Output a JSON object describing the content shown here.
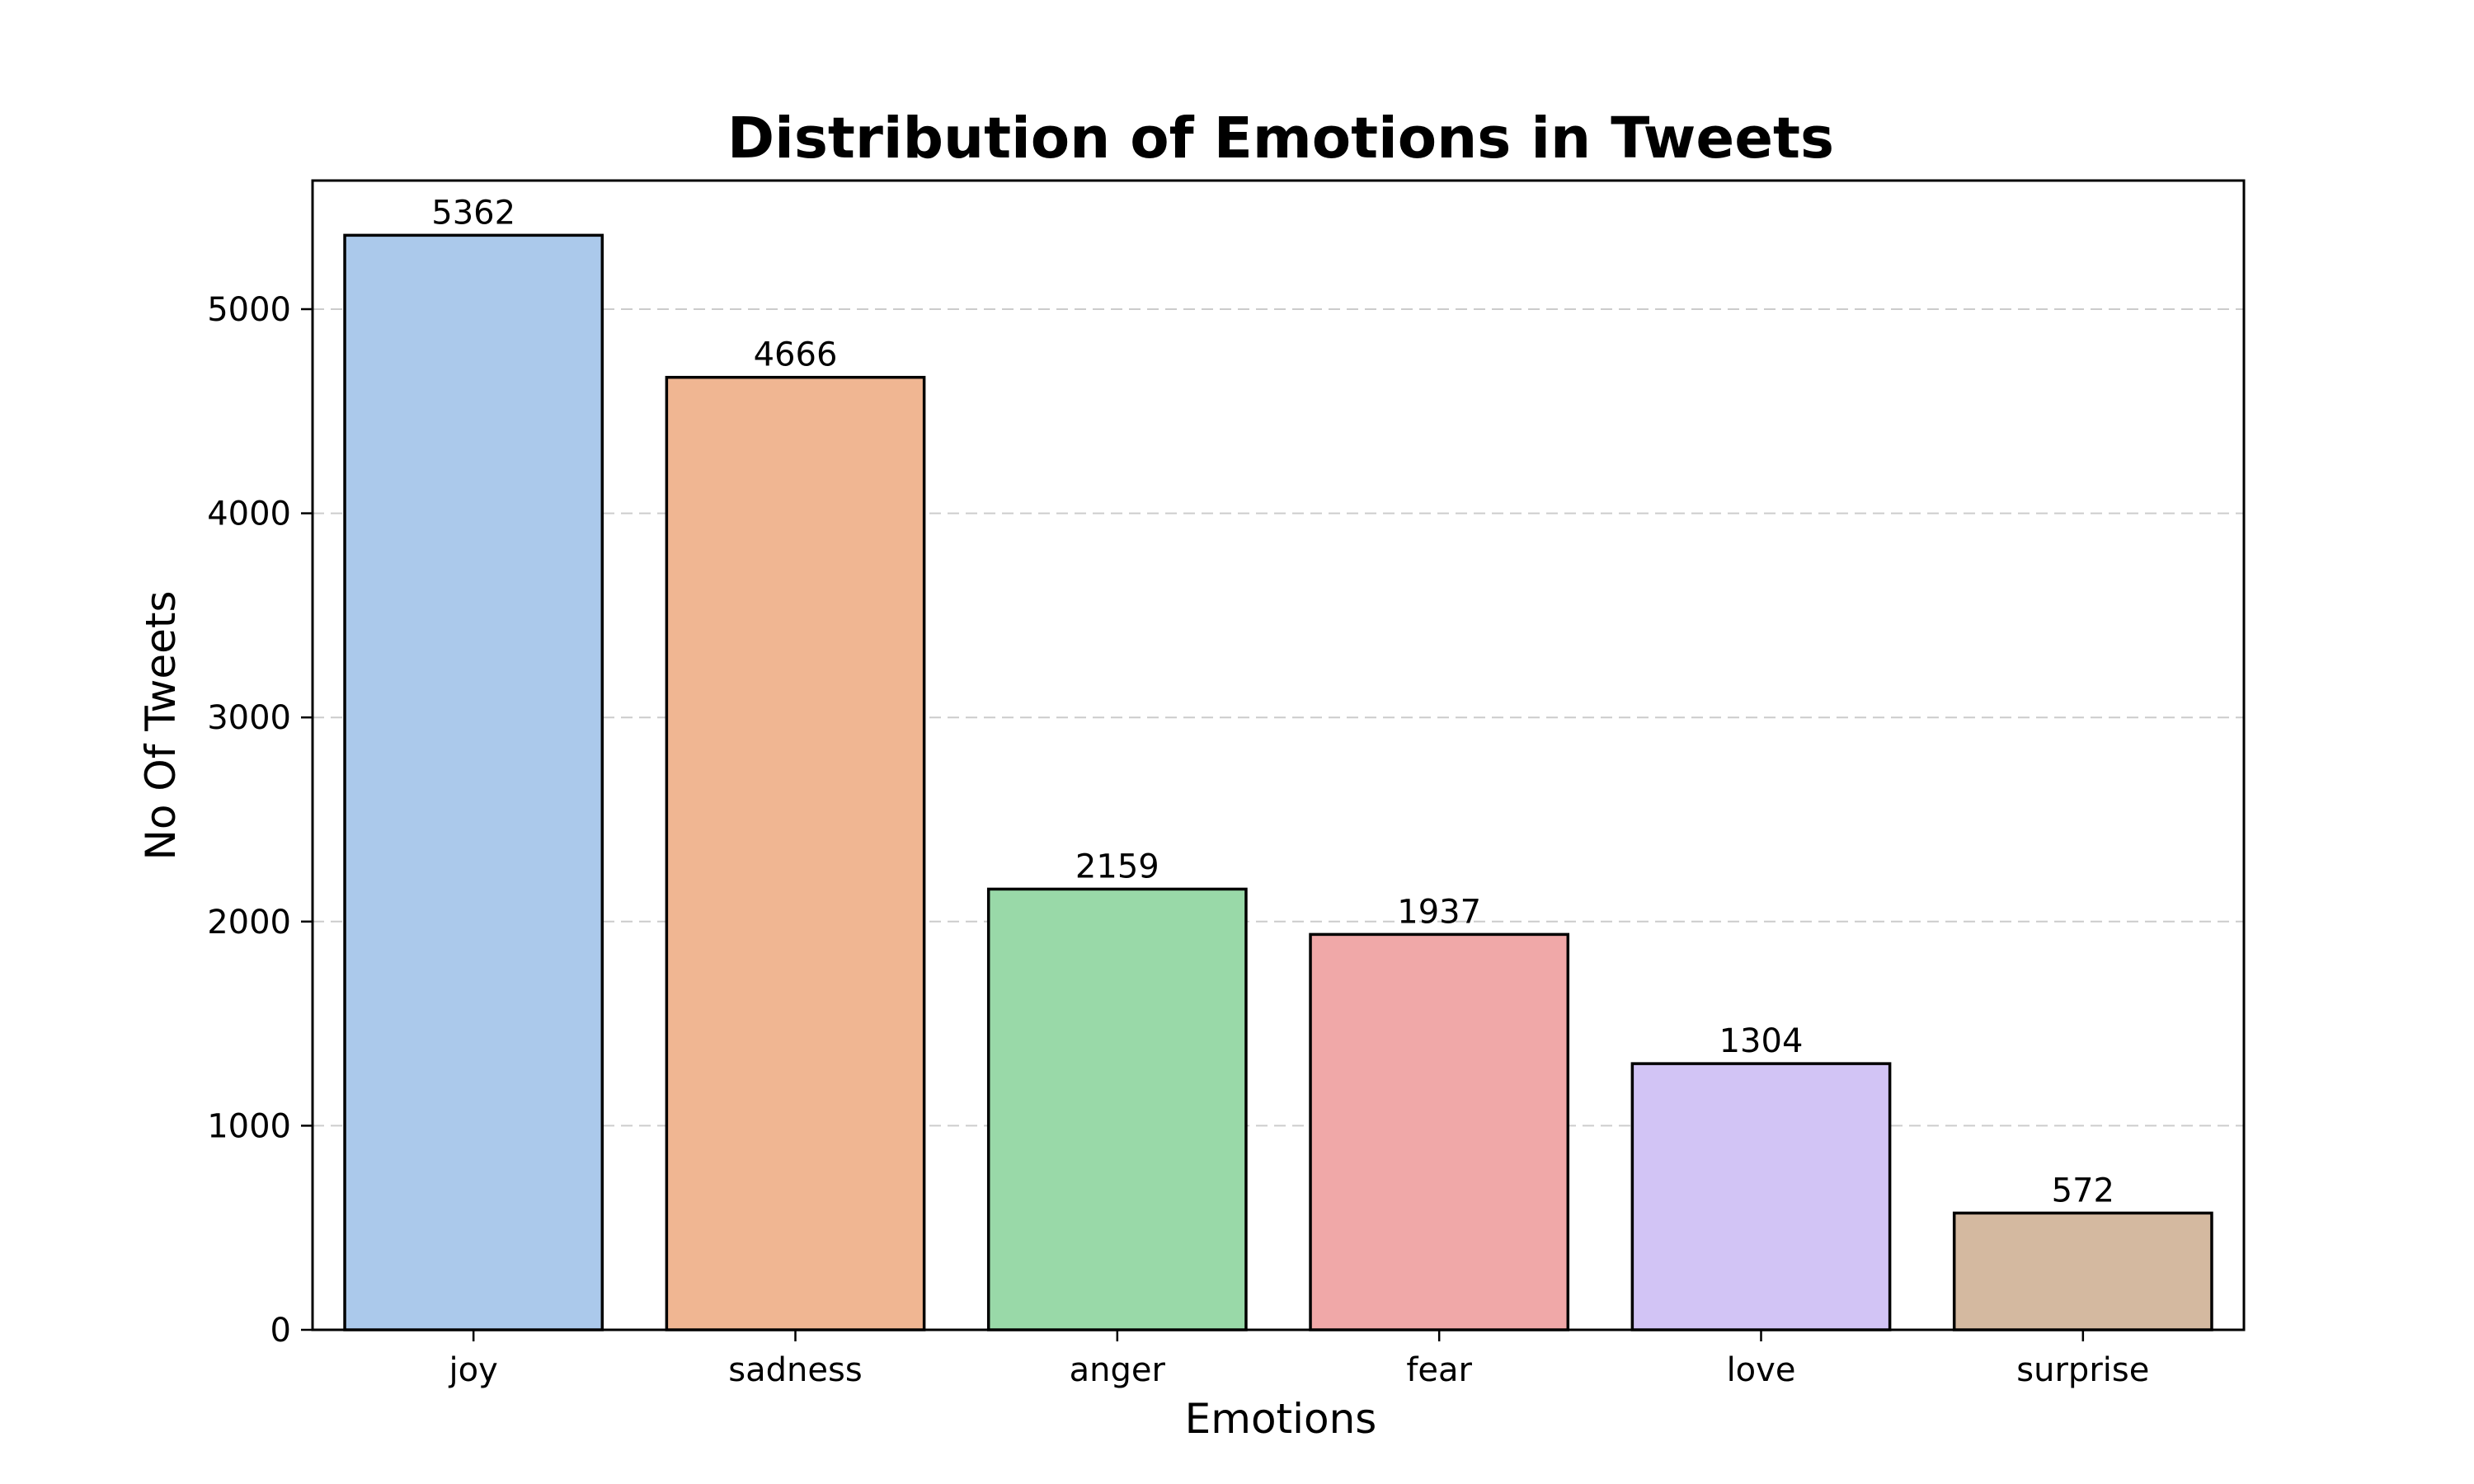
{
  "chart_data": {
    "type": "bar",
    "title": "Distribution of Emotions in Tweets",
    "xlabel": "Emotions",
    "ylabel": "No Of Tweets",
    "categories": [
      "joy",
      "sadness",
      "anger",
      "fear",
      "love",
      "surprise"
    ],
    "values": [
      5362,
      4666,
      2159,
      1937,
      1304,
      572
    ],
    "value_labels": [
      "5362",
      "4666",
      "2159",
      "1937",
      "1304",
      "572"
    ],
    "colors": [
      "#abc9eb",
      "#f0b692",
      "#99d9a8",
      "#f0a8a8",
      "#d2c4f5",
      "#d4b9a0"
    ],
    "ylim": [
      0,
      5630
    ],
    "yticks": [
      0,
      1000,
      2000,
      3000,
      4000,
      5000
    ],
    "ytick_labels": [
      "0",
      "1000",
      "2000",
      "3000",
      "4000",
      "5000"
    ],
    "grid": "y-dashed",
    "legend": "none"
  }
}
